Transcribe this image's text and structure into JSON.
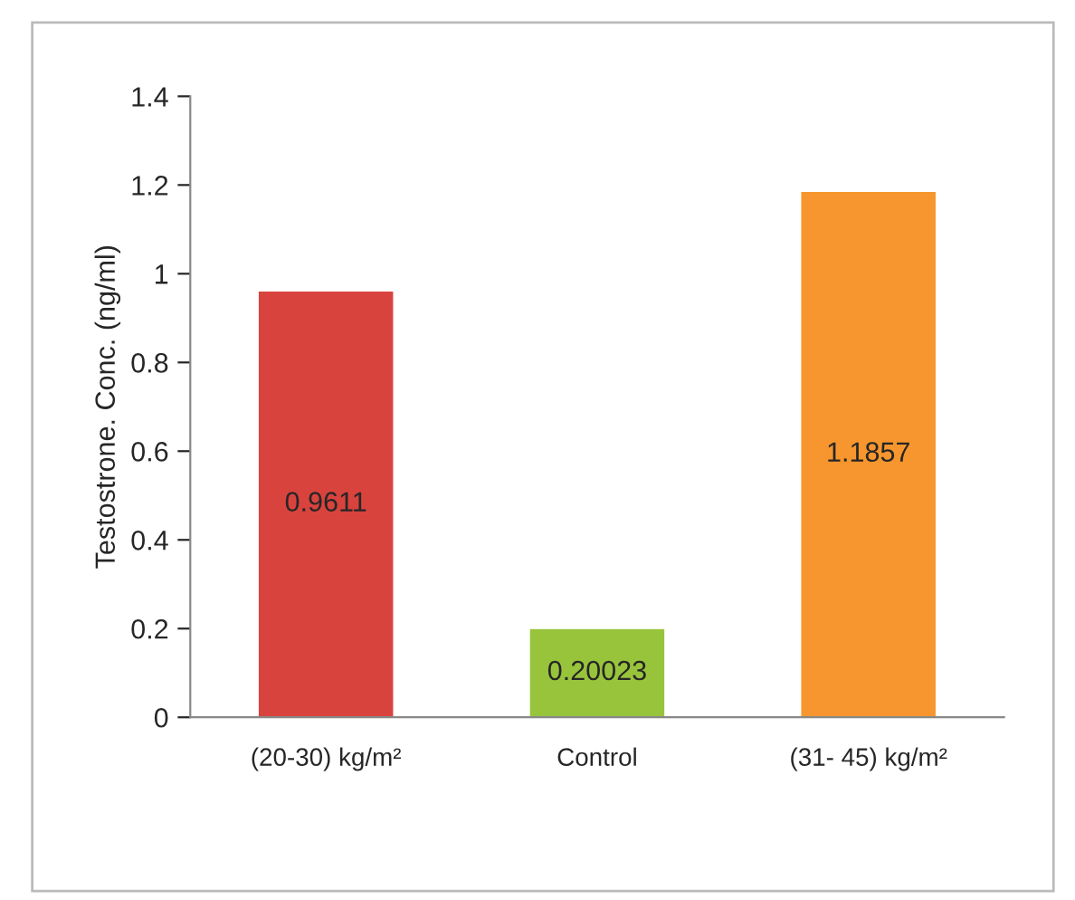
{
  "chart_data": {
    "type": "bar",
    "ylabel": "Testostrone. Conc. (ng/ml)",
    "categories": [
      "(20-30) kg/m²",
      "Control",
      "(31- 45) kg/m²"
    ],
    "values": [
      0.9611,
      0.20023,
      1.1857
    ],
    "colors": [
      "#d9433e",
      "#98c43c",
      "#f7962e"
    ],
    "ylim": [
      0,
      1.4
    ],
    "yticks": [
      0,
      {
        "value": 0.2,
        "label": "0.2"
      },
      {
        "value": 0.4,
        "label": "0.4"
      },
      {
        "value": 0.6,
        "label": "0.6"
      },
      {
        "value": 0.8,
        "label": "0.8"
      },
      1,
      {
        "value": 1.2,
        "label": "1.2"
      },
      {
        "value": 1.4,
        "label": "1.4"
      }
    ],
    "grid": false,
    "legend": false,
    "data_labels": true
  }
}
